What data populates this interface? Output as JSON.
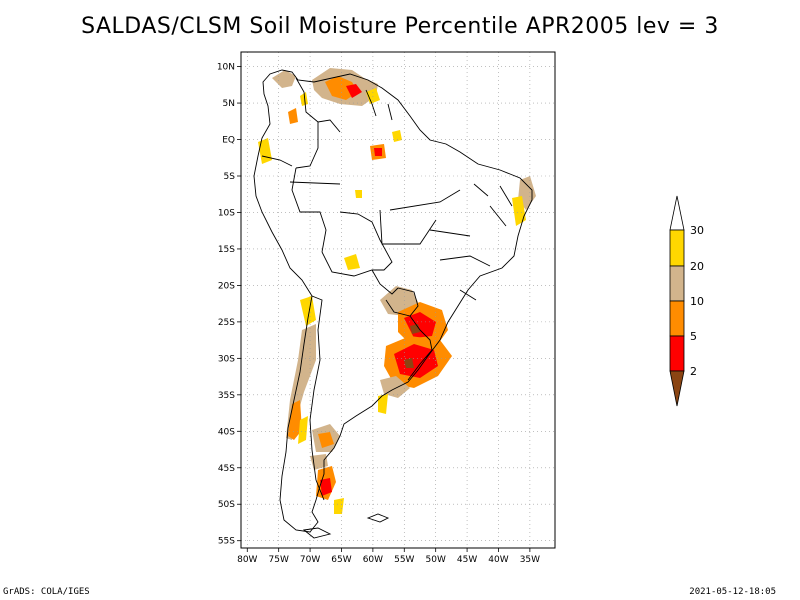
{
  "title": "SALDAS/CLSM Soil Moisture Percentile APR2005 lev = 3",
  "footer": {
    "left": "GrADS: COLA/IGES",
    "right": "2021-05-12-18:05"
  },
  "map": {
    "lat_range": [
      -56,
      12
    ],
    "lon_range": [
      -81,
      -31
    ],
    "lat_ticks": [
      {
        "value": 10,
        "label": "10N"
      },
      {
        "value": 5,
        "label": "5N"
      },
      {
        "value": 0,
        "label": "EQ"
      },
      {
        "value": -5,
        "label": "5S"
      },
      {
        "value": -10,
        "label": "10S"
      },
      {
        "value": -15,
        "label": "15S"
      },
      {
        "value": -20,
        "label": "20S"
      },
      {
        "value": -25,
        "label": "25S"
      },
      {
        "value": -30,
        "label": "30S"
      },
      {
        "value": -35,
        "label": "35S"
      },
      {
        "value": -40,
        "label": "40S"
      },
      {
        "value": -45,
        "label": "45S"
      },
      {
        "value": -50,
        "label": "50S"
      },
      {
        "value": -55,
        "label": "55S"
      }
    ],
    "lon_ticks": [
      {
        "value": -80,
        "label": "80W"
      },
      {
        "value": -75,
        "label": "75W"
      },
      {
        "value": -70,
        "label": "70W"
      },
      {
        "value": -65,
        "label": "65W"
      },
      {
        "value": -60,
        "label": "60W"
      },
      {
        "value": -55,
        "label": "55W"
      },
      {
        "value": -50,
        "label": "50W"
      },
      {
        "value": -45,
        "label": "45W"
      },
      {
        "value": -40,
        "label": "40W"
      },
      {
        "value": -35,
        "label": "35W"
      }
    ]
  },
  "colorbar": {
    "levels": [
      "2",
      "5",
      "10",
      "20",
      "30"
    ],
    "bins": [
      {
        "range": "below 2",
        "color": "#8b4513"
      },
      {
        "range": "2-5",
        "color": "#ff0000"
      },
      {
        "range": "5-10",
        "color": "#ff8c00"
      },
      {
        "range": "10-20",
        "color": "#d2b48c"
      },
      {
        "range": "20-30",
        "color": "#ffd700"
      },
      {
        "range": "above 30",
        "color": "#ffffff"
      }
    ]
  }
}
